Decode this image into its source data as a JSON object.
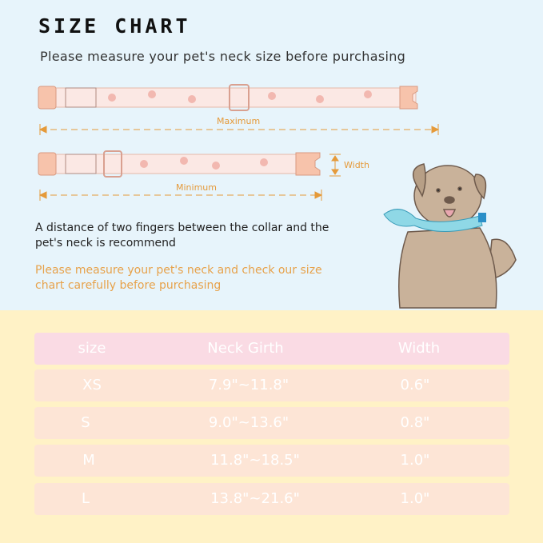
{
  "title": "SIZE CHART",
  "subtitle": "Please measure your pet's neck size before purchasing",
  "diagram": {
    "maximum_label": "Maximum",
    "minimum_label": "Minimum",
    "width_label": "Width"
  },
  "note": "A distance of two fingers between the collar and the pet's neck is recommend",
  "note_highlight": "Please measure your pet's neck and check our size chart carefully before purchasing",
  "table": {
    "headers": [
      "size",
      "Neck Girth",
      "Width"
    ],
    "rows": [
      [
        "XS",
        "7.9\"~11.8\"",
        "0.6\""
      ],
      [
        "S",
        "9.0\"~13.6\"",
        "0.8\""
      ],
      [
        "M",
        "11.8\"~18.5\"",
        "1.0\""
      ],
      [
        "L",
        "13.8\"~21.6\"",
        "1.0\""
      ]
    ]
  },
  "colors": {
    "top_bg": "#e7f4fb",
    "bottom_bg": "#fff2c6",
    "header_row": "#fadbe4",
    "body_row": "#fde5d6",
    "accent": "#e59a3a"
  }
}
